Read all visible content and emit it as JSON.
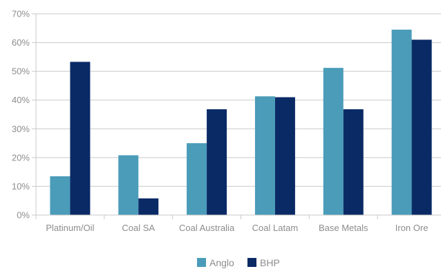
{
  "chart_data": {
    "type": "bar",
    "categories": [
      "Platinum/Oil",
      "Coal SA",
      "Coal Australia",
      "Coal Latam",
      "Base Metals",
      "Iron Ore"
    ],
    "series": [
      {
        "name": "Anglo",
        "values": [
          13.5,
          20.8,
          25.0,
          41.3,
          51.2,
          64.5
        ],
        "color": "#4a9cb9"
      },
      {
        "name": "BHP",
        "values": [
          53.3,
          5.8,
          36.8,
          41.0,
          36.8,
          61.0
        ],
        "color": "#0a2a66"
      }
    ],
    "yticks": [
      "0%",
      "10%",
      "20%",
      "30%",
      "40%",
      "50%",
      "60%",
      "70%"
    ],
    "ylim": [
      0,
      70
    ],
    "grid": true,
    "legend_position": "bottom-center",
    "axis_color": "#c8c8c8",
    "text_color": "#8c8c8c"
  }
}
